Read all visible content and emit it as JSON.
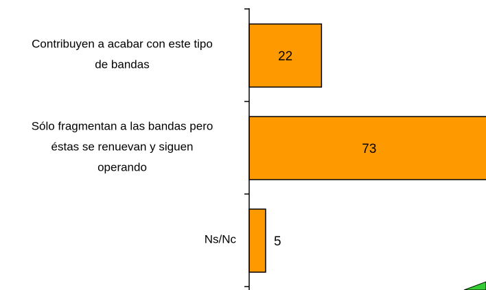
{
  "chart_data": {
    "type": "bar",
    "orientation": "horizontal",
    "title": "",
    "xlabel": "",
    "ylabel": "",
    "categories": [
      [
        "Contribuyen a acabar con este tipo",
        "de bandas"
      ],
      [
        "Sólo fragmentan a las bandas pero",
        "éstas se renuevan y siguen",
        "operando"
      ],
      [
        "Ns/Nc"
      ]
    ],
    "values": [
      22,
      73,
      5
    ],
    "data_labels": [
      "22",
      "73",
      "5"
    ],
    "xlim": [
      0,
      73
    ],
    "grid": false,
    "legend": "none",
    "colors": {
      "bar_fill": "#FF9900",
      "bar_stroke": "#000000",
      "axis": "#000000",
      "corner_shape": "#33CC33"
    }
  }
}
